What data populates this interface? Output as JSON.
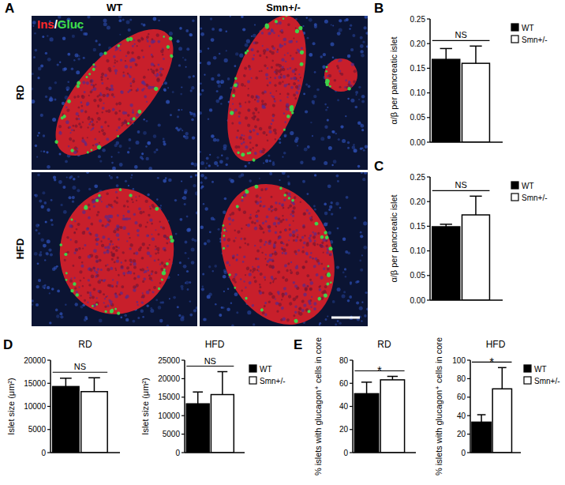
{
  "figure": {
    "panel_letters": [
      "A",
      "B",
      "C",
      "D",
      "E"
    ],
    "column_labels": [
      "WT",
      "Smn+/-"
    ],
    "row_labels": [
      "RD",
      "HFD"
    ],
    "stain_labels": [
      "Ins",
      "/",
      "Gluc"
    ]
  },
  "chart_data": [
    {
      "type": "bar",
      "categories": [
        null
      ],
      "series": [
        {
          "name": "WT",
          "color": "#000000",
          "values": [
            0.168
          ],
          "errors": [
            0.022
          ]
        },
        {
          "name": "Smn+/-",
          "color": "#ffffff",
          "values": [
            0.16
          ],
          "errors": [
            0.035
          ]
        }
      ],
      "y_label": "α/β per pancreatic islet",
      "ylim": [
        0,
        0.25
      ],
      "yticks": [
        {
          "value": 0,
          "label": "0.00"
        },
        0.05,
        {
          "value": 0.1,
          "label": "0.10"
        },
        0.15,
        {
          "value": 0.2,
          "label": "0.20"
        },
        0.25
      ],
      "annotation": "NS",
      "legend": "right",
      "grid": false
    },
    {
      "type": "bar",
      "categories": [
        null
      ],
      "series": [
        {
          "name": "WT",
          "color": "#000000",
          "values": [
            0.149
          ],
          "errors": [
            0.005
          ]
        },
        {
          "name": "Smn+/-",
          "color": "#ffffff",
          "values": [
            0.173
          ],
          "errors": [
            0.038
          ]
        }
      ],
      "y_label": "α/β per pancreatic islet",
      "ylim": [
        0,
        0.25
      ],
      "yticks": [
        {
          "value": 0,
          "label": "0.00"
        },
        0.05,
        {
          "value": 0.1,
          "label": "0.10"
        },
        0.15,
        {
          "value": 0.2,
          "label": "0.20"
        },
        0.25
      ],
      "annotation": "NS",
      "legend": "right",
      "grid": false
    },
    {
      "type": "bar",
      "title": "RD",
      "categories": [
        null
      ],
      "series": [
        {
          "color": "#000000",
          "values": [
            14300
          ],
          "errors": [
            1800
          ]
        },
        {
          "color": "#ffffff",
          "values": [
            13200
          ],
          "errors": [
            3000
          ]
        }
      ],
      "y_label": "Islet size (μm²)",
      "ylim": [
        0,
        20000
      ],
      "yticks": [
        0,
        5000,
        10000,
        15000,
        20000
      ],
      "annotation": "NS",
      "grid": false
    },
    {
      "type": "bar",
      "title": "HFD",
      "categories": [
        null
      ],
      "series": [
        {
          "name": "WT",
          "color": "#000000",
          "values": [
            13200
          ],
          "errors": [
            3200
          ]
        },
        {
          "name": "Smn+/-",
          "color": "#ffffff",
          "values": [
            15700
          ],
          "errors": [
            6200
          ]
        }
      ],
      "y_label": "Islet size (μm²)",
      "ylim": [
        0,
        25000
      ],
      "yticks": [
        0,
        5000,
        10000,
        15000,
        20000,
        25000
      ],
      "annotation": "NS",
      "legend": "right",
      "grid": false
    },
    {
      "type": "bar",
      "title": "RD",
      "categories": [
        null
      ],
      "series": [
        {
          "color": "#000000",
          "values": [
            51
          ],
          "errors": [
            10
          ]
        },
        {
          "color": "#ffffff",
          "values": [
            63
          ],
          "errors": [
            3
          ]
        }
      ],
      "y_label": "% islets with glucagon⁺ cells in core",
      "ylim": [
        0,
        80
      ],
      "yticks": [
        0,
        20,
        40,
        60,
        80
      ],
      "annotation": "*",
      "grid": false
    },
    {
      "type": "bar",
      "title": "HFD",
      "categories": [
        null
      ],
      "series": [
        {
          "name": "WT",
          "color": "#000000",
          "values": [
            33
          ],
          "errors": [
            8
          ]
        },
        {
          "name": "Smn+/-",
          "color": "#ffffff",
          "values": [
            69
          ],
          "errors": [
            23
          ]
        }
      ],
      "y_label": "% islets with glucagon⁺ cells in core",
      "ylim": [
        0,
        100
      ],
      "yticks": [
        0,
        20,
        40,
        60,
        80,
        100
      ],
      "annotation": "*",
      "legend": "right",
      "grid": false
    }
  ]
}
